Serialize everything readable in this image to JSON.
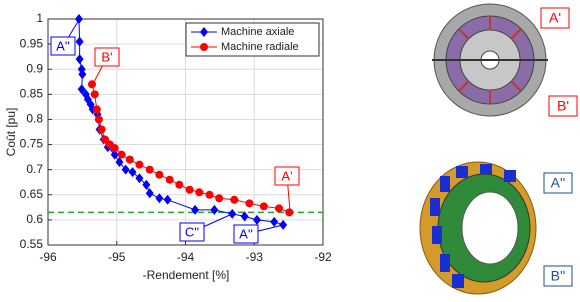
{
  "chart_data": {
    "type": "line-scatter",
    "x_label": "-Rendement [%]",
    "y_label": "Coût [pu]",
    "xlim": [
      -96,
      -92
    ],
    "xticks": [
      -96,
      -95,
      -94,
      -93,
      -92
    ],
    "ylim": [
      0.55,
      1
    ],
    "yticks": [
      0.55,
      0.6,
      0.65,
      0.7,
      0.75,
      0.8,
      0.85,
      0.9,
      0.95,
      1
    ],
    "grid": true,
    "legend": "upper right",
    "series": [
      {
        "name": "Machine axiale",
        "color": "#0000ff",
        "marker": "diamond",
        "x": [
          -95.55,
          -95.54,
          -95.54,
          -95.51,
          -95.5,
          -95.51,
          -95.45,
          -95.42,
          -95.38,
          -95.35,
          -95.28,
          -95.25,
          -95.19,
          -95.13,
          -95.03,
          -94.96,
          -94.87,
          -94.77,
          -94.67,
          -94.57,
          -94.52,
          -94.38,
          -94.26,
          -93.86,
          -93.58,
          -93.32,
          -93.14,
          -92.96,
          -92.71,
          -92.58
        ],
        "values": [
          1.0,
          0.955,
          0.92,
          0.9,
          0.89,
          0.86,
          0.85,
          0.84,
          0.83,
          0.82,
          0.81,
          0.78,
          0.76,
          0.745,
          0.73,
          0.715,
          0.7,
          0.695,
          0.683,
          0.67,
          0.653,
          0.643,
          0.64,
          0.62,
          0.62,
          0.612,
          0.607,
          0.6,
          0.596,
          0.59
        ]
      },
      {
        "name": "Machine radiale",
        "color": "#ff0000",
        "marker": "circle",
        "x": [
          -95.36,
          -95.32,
          -95.29,
          -95.26,
          -95.22,
          -95.17,
          -95.1,
          -95.03,
          -94.93,
          -94.81,
          -94.67,
          -94.52,
          -94.38,
          -94.23,
          -94.09,
          -93.94,
          -93.8,
          -93.65,
          -93.51,
          -93.29,
          -93.07,
          -92.86,
          -92.64,
          -92.49
        ],
        "values": [
          0.87,
          0.85,
          0.82,
          0.8,
          0.78,
          0.76,
          0.75,
          0.743,
          0.73,
          0.72,
          0.71,
          0.7,
          0.69,
          0.68,
          0.67,
          0.66,
          0.655,
          0.65,
          0.643,
          0.64,
          0.633,
          0.627,
          0.623,
          0.615
        ]
      }
    ],
    "reference_line": {
      "value": 0.615,
      "color": "#2ca02c"
    },
    "annotations": [
      {
        "text": "A''",
        "color": "#0000ff"
      },
      {
        "text": "B'",
        "color": "#ff0000"
      },
      {
        "text": "C''",
        "color": "#0000ff"
      },
      {
        "text": "A''",
        "color": "#0000ff"
      },
      {
        "text": "A'",
        "color": "#ff0000"
      }
    ]
  },
  "figures": [
    {
      "labels": [
        "A'",
        "B'"
      ],
      "color": "#ff0000"
    },
    {
      "labels": [
        "A''",
        "B''"
      ],
      "color": "#1f4e99"
    }
  ]
}
